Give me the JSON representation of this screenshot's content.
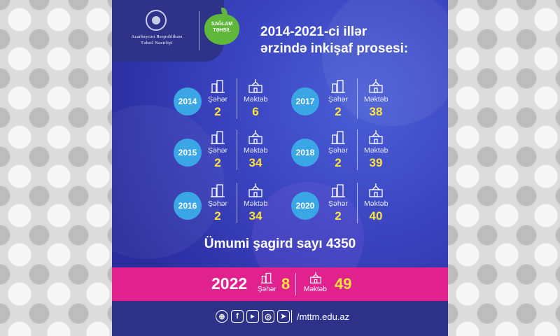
{
  "logos": {
    "ministry_line1": "Azərbaycan Respublikası",
    "ministry_line2": "Təhsil Nazirliyi",
    "program_line1": "SAĞLAM",
    "program_line2": "TƏHSİL"
  },
  "headline": {
    "line1": "2014-2021-ci illər",
    "line2": "ərzində inkişaf prosesi:"
  },
  "labels": {
    "city": "Şəhər",
    "school": "Məktəb"
  },
  "years": [
    {
      "year": "2014",
      "city": "2",
      "school": "6"
    },
    {
      "year": "2015",
      "city": "2",
      "school": "34"
    },
    {
      "year": "2016",
      "city": "2",
      "school": "34"
    },
    {
      "year": "2017",
      "city": "2",
      "school": "38"
    },
    {
      "year": "2018",
      "city": "2",
      "school": "39"
    },
    {
      "year": "2020",
      "city": "2",
      "school": "40"
    }
  ],
  "total": "Ümumi şagird sayı 4350",
  "highlight": {
    "year": "2022",
    "city": "8",
    "school": "49"
  },
  "footer": {
    "website": "/mttm.edu.az"
  },
  "colors": {
    "background": "#3a43bf",
    "year_circle": "#3aa6e6",
    "number": "#ffe23b",
    "band": "#e1218e",
    "footer": "#2e3288"
  }
}
